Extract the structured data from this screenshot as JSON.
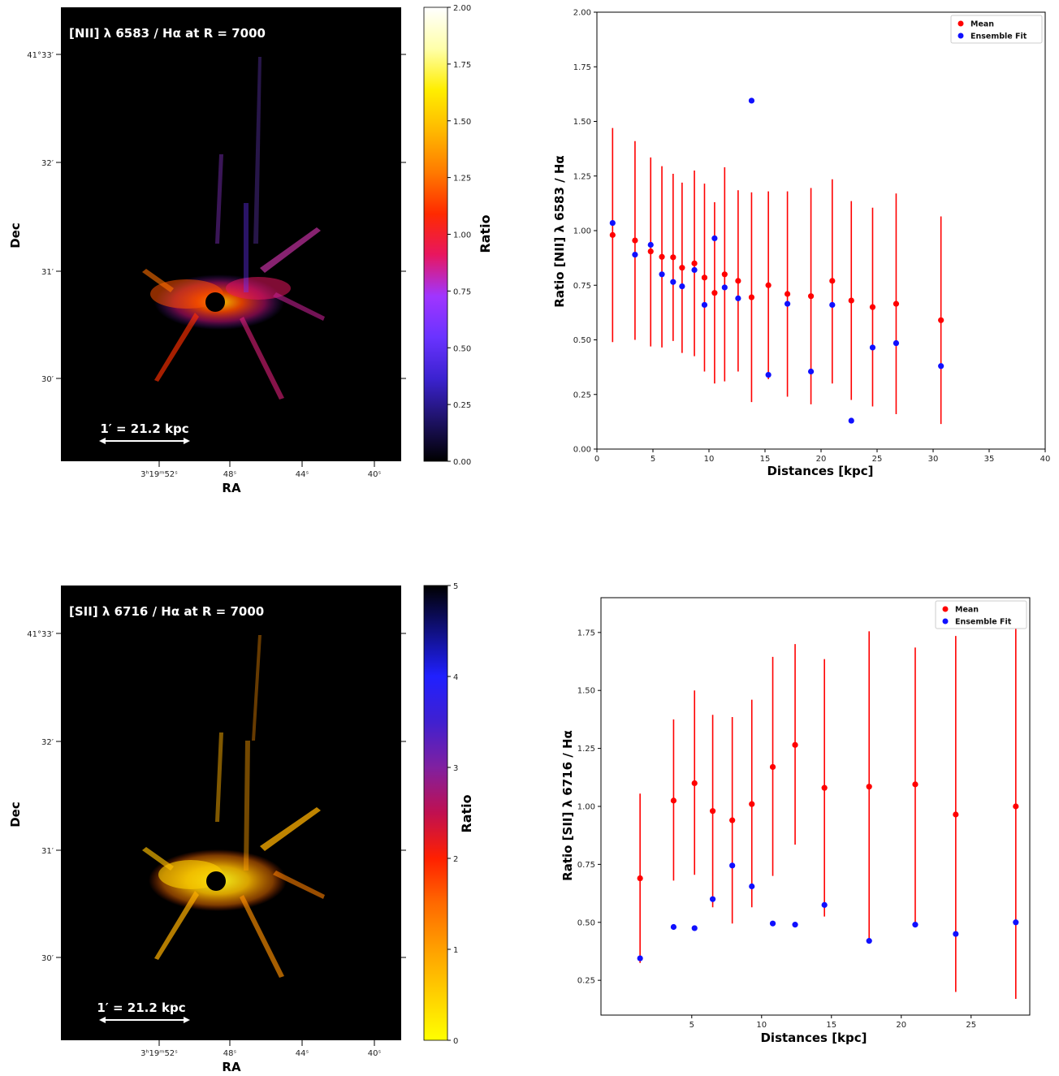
{
  "maps": [
    {
      "title": "[NII] λ 6583 / Hα at R = 7000",
      "scale_label": "1′ = 21.2 kpc",
      "xlabel": "RA",
      "ylabel": "Dec",
      "xticks": [
        "3ʰ19ᵐ52ˢ",
        "48ˢ",
        "44ˢ",
        "40ˢ"
      ],
      "yticks": [
        "41°33′",
        "32′",
        "31′",
        "30′"
      ],
      "colorbar": {
        "label": "Ratio",
        "ticks": [
          "2.00",
          "1.75",
          "1.50",
          "1.25",
          "1.00",
          "0.75",
          "0.50",
          "0.25",
          "0.00"
        ],
        "range": [
          0,
          2
        ],
        "colormap": "gnuplot2",
        "colors": [
          "#000000",
          "#1e1266",
          "#3b22d0",
          "#6a33ff",
          "#a035ff",
          "#e8165f",
          "#ff2a00",
          "#ff7a00",
          "#ffb800",
          "#ffee00",
          "#ffffaa",
          "#ffffff"
        ]
      }
    },
    {
      "title": "[SII] λ 6716 / Hα at R = 7000",
      "scale_label": "1′ = 21.2 kpc",
      "xlabel": "RA",
      "ylabel": "Dec",
      "xticks": [
        "3ʰ19ᵐ52ˢ",
        "48ˢ",
        "44ˢ",
        "40ˢ"
      ],
      "yticks": [
        "41°33′",
        "32′",
        "31′",
        "30′"
      ],
      "colorbar": {
        "label": "Ratio",
        "ticks": [
          "5",
          "4",
          "3",
          "2",
          "1",
          "0"
        ],
        "range": [
          0,
          5
        ],
        "colormap": "gnuplot2_r",
        "colors": [
          "#ffff00",
          "#ffd000",
          "#ffa000",
          "#ff6a00",
          "#ff2000",
          "#c01050",
          "#8020a0",
          "#4020d0",
          "#2020ff",
          "#101080",
          "#000000"
        ]
      }
    }
  ],
  "chart_data": [
    {
      "type": "scatter",
      "title": "",
      "xlabel": "Distances [kpc]",
      "ylabel": "Ratio [NII] λ 6583 / Hα",
      "xlim": [
        0,
        40
      ],
      "ylim": [
        0,
        2
      ],
      "xticks": [
        0,
        5,
        10,
        15,
        20,
        25,
        30,
        35,
        40
      ],
      "yticks": [
        0.0,
        0.25,
        0.5,
        0.75,
        1.0,
        1.25,
        1.5,
        1.75,
        2.0
      ],
      "xtick_format": "0",
      "ytick_format": "2",
      "legend_position": "top-right",
      "series": [
        {
          "name": "Mean",
          "color": "#ff0000",
          "x": [
            1.4,
            3.4,
            4.8,
            5.8,
            6.8,
            7.6,
            8.7,
            9.6,
            10.5,
            11.4,
            12.6,
            13.8,
            15.3,
            17.0,
            19.1,
            21.0,
            22.7,
            24.6,
            26.7,
            30.7
          ],
          "y": [
            0.98,
            0.955,
            0.905,
            0.88,
            0.878,
            0.83,
            0.85,
            0.785,
            0.715,
            0.8,
            0.77,
            0.695,
            0.75,
            0.71,
            0.7,
            0.77,
            0.68,
            0.65,
            0.665,
            0.59
          ],
          "err_low": [
            0.49,
            0.5,
            0.47,
            0.465,
            0.495,
            0.44,
            0.425,
            0.355,
            0.3,
            0.31,
            0.355,
            0.215,
            0.32,
            0.24,
            0.205,
            0.3,
            0.225,
            0.195,
            0.16,
            0.115
          ],
          "err_high": [
            1.47,
            1.41,
            1.335,
            1.295,
            1.26,
            1.22,
            1.275,
            1.215,
            1.13,
            1.29,
            1.185,
            1.175,
            1.18,
            1.18,
            1.195,
            1.235,
            1.135,
            1.105,
            1.17,
            1.065
          ]
        },
        {
          "name": "Ensemble Fit",
          "color": "#1010ff",
          "x": [
            1.4,
            3.4,
            4.8,
            5.8,
            6.8,
            7.6,
            8.7,
            9.6,
            10.5,
            11.4,
            12.6,
            13.8,
            15.3,
            17.0,
            19.1,
            21.0,
            22.7,
            24.6,
            26.7,
            30.7
          ],
          "y": [
            1.035,
            0.89,
            0.935,
            0.8,
            0.765,
            0.745,
            0.82,
            0.66,
            0.965,
            0.74,
            0.69,
            1.595,
            0.34,
            0.665,
            0.355,
            0.66,
            0.13,
            0.465,
            0.485,
            0.38
          ]
        }
      ]
    },
    {
      "type": "scatter",
      "title": "",
      "xlabel": "Distances [kpc]",
      "ylabel": "Ratio [SII] λ 6716 / Hα",
      "xlim": [
        -1.5,
        29.2
      ],
      "ylim": [
        0.1,
        1.9
      ],
      "xticks": [
        5,
        10,
        15,
        20,
        25
      ],
      "yticks": [
        0.25,
        0.5,
        0.75,
        1.0,
        1.25,
        1.5,
        1.75
      ],
      "xtick_format": "0",
      "ytick_format": "2",
      "legend_position": "top-right",
      "series": [
        {
          "name": "Mean",
          "color": "#ff0000",
          "x": [
            1.3,
            3.7,
            5.2,
            6.5,
            7.9,
            9.3,
            10.8,
            12.4,
            14.5,
            17.7,
            21.0,
            23.9,
            28.2
          ],
          "y": [
            0.69,
            1.025,
            1.1,
            0.98,
            0.94,
            1.01,
            1.17,
            1.265,
            1.08,
            1.085,
            1.095,
            0.965,
            1.0
          ],
          "err_low": [
            0.325,
            0.68,
            0.705,
            0.565,
            0.495,
            0.565,
            0.7,
            0.835,
            0.525,
            0.42,
            0.485,
            0.2,
            0.17
          ],
          "err_high": [
            1.055,
            1.375,
            1.5,
            1.395,
            1.385,
            1.46,
            1.645,
            1.7,
            1.635,
            1.755,
            1.685,
            1.735,
            1.8
          ]
        },
        {
          "name": "Ensemble Fit",
          "color": "#1010ff",
          "x": [
            1.3,
            3.7,
            5.2,
            6.5,
            7.9,
            9.3,
            10.8,
            12.4,
            14.5,
            17.7,
            21.0,
            23.9,
            28.2
          ],
          "y": [
            0.345,
            0.48,
            0.475,
            0.6,
            0.745,
            0.655,
            0.495,
            0.49,
            0.575,
            0.42,
            0.49,
            0.45,
            0.5
          ]
        }
      ]
    }
  ]
}
